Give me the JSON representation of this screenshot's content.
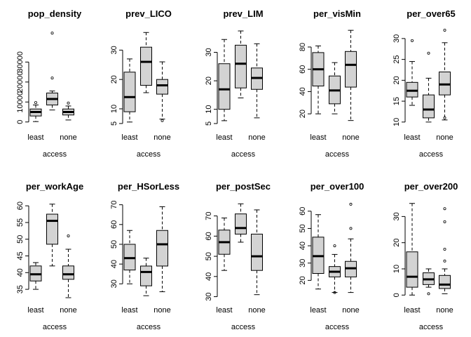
{
  "chart_data": [
    {
      "type": "boxplot",
      "title": "pop_density",
      "xlabel": "access",
      "x_tick_labels": [
        "least",
        "none"
      ],
      "ylim": [
        -1500,
        47000
      ],
      "yticks": [
        0,
        10000,
        20000,
        30000
      ],
      "ytick_labels": [
        "0",
        "10000",
        "20000",
        "30000"
      ],
      "groups": [
        {
          "lower_whisker": 200,
          "q1": 3000,
          "median": 5000,
          "q3": 6500,
          "upper_whisker": 8500,
          "outliers": [
            9700
          ]
        },
        {
          "lower_whisker": 6000,
          "q1": 8500,
          "median": 11500,
          "q3": 14500,
          "upper_whisker": 15500,
          "outliers": [
            22000,
            44500
          ]
        },
        {
          "lower_whisker": 1000,
          "q1": 3500,
          "median": 5000,
          "q3": 6500,
          "upper_whisker": 8000,
          "outliers": [
            9500
          ]
        }
      ]
    },
    {
      "type": "boxplot",
      "title": "prev_LICO",
      "xlabel": "access",
      "x_tick_labels": [
        "least",
        "none"
      ],
      "ylim": [
        4.5,
        37.5
      ],
      "yticks": [
        5,
        10,
        20,
        30
      ],
      "ytick_labels": [
        "5",
        "10",
        "20",
        "30"
      ],
      "groups": [
        {
          "lower_whisker": 5.5,
          "q1": 9,
          "median": 14,
          "q3": 22.5,
          "upper_whisker": 27,
          "outliers": []
        },
        {
          "lower_whisker": 15.5,
          "q1": 18,
          "median": 26,
          "q3": 31,
          "upper_whisker": 36,
          "outliers": []
        },
        {
          "lower_whisker": 6.5,
          "q1": 15,
          "median": 18,
          "q3": 20,
          "upper_whisker": 26,
          "outliers": [
            6
          ]
        }
      ]
    },
    {
      "type": "boxplot",
      "title": "prev_LIM",
      "xlabel": "access",
      "x_tick_labels": [
        "least",
        "none"
      ],
      "ylim": [
        4.5,
        38.5
      ],
      "yticks": [
        5,
        10,
        20,
        30
      ],
      "ytick_labels": [
        "5",
        "10",
        "20",
        "30"
      ],
      "groups": [
        {
          "lower_whisker": 6,
          "q1": 10,
          "median": 17,
          "q3": 26,
          "upper_whisker": 34.5,
          "outliers": []
        },
        {
          "lower_whisker": 14,
          "q1": 17.5,
          "median": 26,
          "q3": 32.5,
          "upper_whisker": 37.5,
          "outliers": []
        },
        {
          "lower_whisker": 7,
          "q1": 17,
          "median": 21,
          "q3": 24.5,
          "upper_whisker": 33,
          "outliers": []
        }
      ]
    },
    {
      "type": "boxplot",
      "title": "per_visMin",
      "xlabel": "access",
      "x_tick_labels": [
        "least",
        "none"
      ],
      "ylim": [
        10,
        97
      ],
      "yticks": [
        20,
        40,
        60,
        80
      ],
      "ytick_labels": [
        "20",
        "40",
        "60",
        "80"
      ],
      "groups": [
        {
          "lower_whisker": 20,
          "q1": 45,
          "median": 60,
          "q3": 75,
          "upper_whisker": 81,
          "outliers": []
        },
        {
          "lower_whisker": 20,
          "q1": 29,
          "median": 41,
          "q3": 54,
          "upper_whisker": 66,
          "outliers": []
        },
        {
          "lower_whisker": 14,
          "q1": 44,
          "median": 64,
          "q3": 76,
          "upper_whisker": 95,
          "outliers": []
        }
      ]
    },
    {
      "type": "boxplot",
      "title": "per_over65",
      "xlabel": "access",
      "x_tick_labels": [
        "least",
        "none"
      ],
      "ylim": [
        9.3,
        32.5
      ],
      "yticks": [
        10,
        15,
        20,
        25,
        30
      ],
      "ytick_labels": [
        "10",
        "15",
        "20",
        "25",
        "30"
      ],
      "groups": [
        {
          "lower_whisker": 14,
          "q1": 16,
          "median": 17.5,
          "q3": 19.5,
          "upper_whisker": 24.5,
          "outliers": [
            29.5
          ]
        },
        {
          "lower_whisker": 10,
          "q1": 11,
          "median": 13,
          "q3": 16.5,
          "upper_whisker": 20.5,
          "outliers": [
            26.5
          ]
        },
        {
          "lower_whisker": 10.5,
          "q1": 16.5,
          "median": 19,
          "q3": 22,
          "upper_whisker": 29,
          "outliers": [
            11,
            32
          ]
        }
      ]
    },
    {
      "type": "boxplot",
      "title": "per_workAge",
      "xlabel": "access",
      "x_tick_labels": [
        "least",
        "none"
      ],
      "ylim": [
        32.5,
        61.5
      ],
      "yticks": [
        35,
        40,
        45,
        50,
        55,
        60
      ],
      "ytick_labels": [
        "35",
        "40",
        "45",
        "50",
        "55",
        "60"
      ],
      "groups": [
        {
          "lower_whisker": 35,
          "q1": 37.5,
          "median": 39.5,
          "q3": 42,
          "upper_whisker": 43,
          "outliers": []
        },
        {
          "lower_whisker": 42,
          "q1": 48.5,
          "median": 55.5,
          "q3": 57.5,
          "upper_whisker": 60.5,
          "outliers": []
        },
        {
          "lower_whisker": 32.5,
          "q1": 38,
          "median": 39.5,
          "q3": 42,
          "upper_whisker": 47,
          "outliers": [
            51
          ]
        }
      ]
    },
    {
      "type": "boxplot",
      "title": "per_HSorLess",
      "xlabel": "access",
      "x_tick_labels": [
        "least",
        "none"
      ],
      "ylim": [
        23,
        72
      ],
      "yticks": [
        30,
        40,
        50,
        60,
        70
      ],
      "ytick_labels": [
        "30",
        "40",
        "50",
        "60",
        "70"
      ],
      "groups": [
        {
          "lower_whisker": 30,
          "q1": 37,
          "median": 43,
          "q3": 50,
          "upper_whisker": 57,
          "outliers": []
        },
        {
          "lower_whisker": 24,
          "q1": 29,
          "median": 36,
          "q3": 39,
          "upper_whisker": 43,
          "outliers": []
        },
        {
          "lower_whisker": 26,
          "q1": 39,
          "median": 50,
          "q3": 57,
          "upper_whisker": 69,
          "outliers": []
        }
      ]
    },
    {
      "type": "boxplot",
      "title": "per_postSec",
      "xlabel": "access",
      "x_tick_labels": [
        "least",
        "none"
      ],
      "ylim": [
        29.5,
        77.5
      ],
      "yticks": [
        30,
        40,
        50,
        60,
        70
      ],
      "ytick_labels": [
        "30",
        "40",
        "50",
        "60",
        "70"
      ],
      "groups": [
        {
          "lower_whisker": 43,
          "q1": 51,
          "median": 57,
          "q3": 63,
          "upper_whisker": 69,
          "outliers": []
        },
        {
          "lower_whisker": 57,
          "q1": 61,
          "median": 64,
          "q3": 71,
          "upper_whisker": 76,
          "outliers": []
        },
        {
          "lower_whisker": 31,
          "q1": 43,
          "median": 50,
          "q3": 61,
          "upper_whisker": 73,
          "outliers": []
        }
      ]
    },
    {
      "type": "boxplot",
      "title": "per_over100",
      "xlabel": "access",
      "x_tick_labels": [
        "least",
        "none"
      ],
      "ylim": [
        10,
        66
      ],
      "yticks": [
        20,
        30,
        40,
        50,
        60
      ],
      "ytick_labels": [
        "20",
        "30",
        "40",
        "50",
        "60"
      ],
      "groups": [
        {
          "lower_whisker": 15,
          "q1": 24,
          "median": 34,
          "q3": 45,
          "upper_whisker": 58,
          "outliers": []
        },
        {
          "lower_whisker": 13,
          "q1": 22,
          "median": 25,
          "q3": 28,
          "upper_whisker": 35,
          "outliers": [
            13,
            40
          ]
        },
        {
          "lower_whisker": 13,
          "q1": 22,
          "median": 27,
          "q3": 31,
          "upper_whisker": 44,
          "outliers": [
            50,
            64
          ]
        }
      ]
    },
    {
      "type": "boxplot",
      "title": "per_over200",
      "xlabel": "access",
      "x_tick_labels": [
        "least",
        "none"
      ],
      "ylim": [
        -1,
        36
      ],
      "yticks": [
        0,
        10,
        20,
        30
      ],
      "ytick_labels": [
        "0",
        "10",
        "20",
        "30"
      ],
      "groups": [
        {
          "lower_whisker": 0,
          "q1": 3,
          "median": 7,
          "q3": 16.5,
          "upper_whisker": 35,
          "outliers": []
        },
        {
          "lower_whisker": 3,
          "q1": 4,
          "median": 6,
          "q3": 8.5,
          "upper_whisker": 10,
          "outliers": [
            0.5
          ]
        },
        {
          "lower_whisker": 0.5,
          "q1": 2.5,
          "median": 4,
          "q3": 7.5,
          "upper_whisker": 10,
          "outliers": [
            13,
            17.5,
            28,
            33
          ]
        }
      ]
    }
  ]
}
